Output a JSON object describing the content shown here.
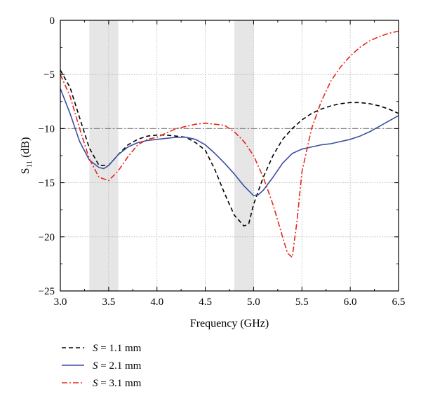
{
  "chart_data": {
    "type": "line",
    "xlabel": "Frequency (GHz)",
    "ylabel_main": "S",
    "ylabel_sub": "11",
    "ylabel_unit": " (dB)",
    "xlim": [
      3.0,
      6.5
    ],
    "ylim": [
      -25,
      0
    ],
    "xticks": [
      3.0,
      3.5,
      4.0,
      4.5,
      5.0,
      5.5,
      6.0,
      6.5
    ],
    "xtick_labels": [
      "3.0",
      "3.5",
      "4.0",
      "4.5",
      "5.0",
      "5.5",
      "6.0",
      "6.5"
    ],
    "yticks": [
      0,
      -5,
      -10,
      -15,
      -20,
      -25
    ],
    "ytick_labels": [
      "0",
      "−5",
      "−10",
      "−15",
      "−20",
      "−25"
    ],
    "grid": true,
    "legend_position": "bottom-left, below plot",
    "reference_line": {
      "y": -10,
      "color": "#888888",
      "style": "dash-dot"
    },
    "shaded_bands": [
      {
        "x": [
          3.3,
          3.6
        ],
        "color": "#e6e6e6"
      },
      {
        "x": [
          4.8,
          5.0
        ],
        "color": "#e6e6e6"
      }
    ],
    "series": [
      {
        "name": "S = 1.1 mm",
        "legend_symbol": "S",
        "legend_rest": " = 1.1 mm",
        "color": "#000000",
        "style": "dashed",
        "x": [
          3.0,
          3.1,
          3.2,
          3.3,
          3.4,
          3.5,
          3.6,
          3.7,
          3.8,
          3.9,
          4.0,
          4.1,
          4.2,
          4.3,
          4.4,
          4.5,
          4.6,
          4.7,
          4.8,
          4.9,
          4.95,
          5.0,
          5.1,
          5.2,
          5.3,
          5.4,
          5.5,
          5.6,
          5.7,
          5.8,
          5.9,
          6.0,
          6.1,
          6.2,
          6.3,
          6.4,
          6.5
        ],
        "y": [
          -4.6,
          -6.2,
          -9.0,
          -11.8,
          -13.4,
          -13.4,
          -12.4,
          -11.5,
          -11.0,
          -10.7,
          -10.6,
          -10.6,
          -10.7,
          -10.8,
          -11.3,
          -12.0,
          -13.8,
          -16.0,
          -18.0,
          -19.0,
          -18.8,
          -17.0,
          -14.5,
          -12.5,
          -11.0,
          -10.0,
          -9.2,
          -8.6,
          -8.2,
          -7.9,
          -7.7,
          -7.6,
          -7.6,
          -7.7,
          -7.9,
          -8.2,
          -8.6
        ]
      },
      {
        "name": "S = 2.1 mm",
        "legend_symbol": "S",
        "legend_rest": " = 2.1 mm",
        "color": "#3a4fa0",
        "style": "solid",
        "x": [
          3.0,
          3.1,
          3.2,
          3.3,
          3.4,
          3.45,
          3.5,
          3.6,
          3.7,
          3.8,
          3.9,
          4.0,
          4.1,
          4.2,
          4.3,
          4.4,
          4.5,
          4.6,
          4.7,
          4.8,
          4.9,
          5.0,
          5.05,
          5.1,
          5.2,
          5.3,
          5.4,
          5.5,
          5.6,
          5.7,
          5.8,
          5.9,
          6.0,
          6.1,
          6.2,
          6.3,
          6.4,
          6.5
        ],
        "y": [
          -6.3,
          -8.6,
          -11.2,
          -12.9,
          -13.6,
          -13.7,
          -13.4,
          -12.4,
          -11.7,
          -11.3,
          -11.1,
          -11.0,
          -10.9,
          -10.8,
          -10.8,
          -11.0,
          -11.5,
          -12.3,
          -13.2,
          -14.2,
          -15.3,
          -16.2,
          -16.1,
          -15.7,
          -14.5,
          -13.2,
          -12.3,
          -11.9,
          -11.7,
          -11.5,
          -11.4,
          -11.2,
          -11.0,
          -10.7,
          -10.3,
          -9.8,
          -9.3,
          -8.8
        ]
      },
      {
        "name": "S = 3.1 mm",
        "legend_symbol": "S",
        "legend_rest": " = 3.1 mm",
        "color": "#e8261b",
        "style": "dash-dot",
        "x": [
          3.0,
          3.1,
          3.2,
          3.3,
          3.4,
          3.5,
          3.6,
          3.7,
          3.8,
          3.9,
          4.0,
          4.1,
          4.2,
          4.3,
          4.4,
          4.5,
          4.6,
          4.7,
          4.8,
          4.9,
          5.0,
          5.1,
          5.2,
          5.3,
          5.35,
          5.4,
          5.45,
          5.5,
          5.6,
          5.7,
          5.8,
          5.9,
          6.0,
          6.1,
          6.2,
          6.3,
          6.4,
          6.5
        ],
        "y": [
          -5.0,
          -7.0,
          -10.0,
          -12.8,
          -14.5,
          -14.8,
          -13.9,
          -12.6,
          -11.5,
          -11.0,
          -10.8,
          -10.4,
          -10.0,
          -9.8,
          -9.6,
          -9.5,
          -9.6,
          -9.7,
          -10.3,
          -11.2,
          -12.5,
          -14.5,
          -17.0,
          -20.0,
          -21.5,
          -21.9,
          -18.5,
          -14.0,
          -10.0,
          -7.5,
          -5.6,
          -4.3,
          -3.3,
          -2.5,
          -1.9,
          -1.5,
          -1.2,
          -1.0
        ]
      }
    ]
  }
}
